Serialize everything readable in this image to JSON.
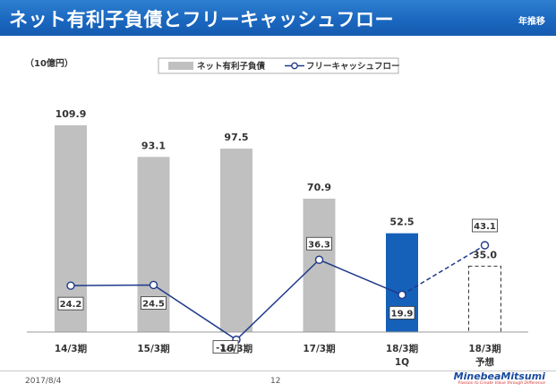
{
  "header": {
    "title": "ネット有利子負債とフリーキャッシュフロー",
    "tag": "年推移"
  },
  "chart_data": {
    "type": "bar",
    "unit_label": "（10億円）",
    "categories": [
      {
        "line1": "14/3期",
        "line2": ""
      },
      {
        "line1": "15/3期",
        "line2": ""
      },
      {
        "line1": "16/3期",
        "line2": ""
      },
      {
        "line1": "17/3期",
        "line2": ""
      },
      {
        "line1": "18/3期",
        "line2": "1Q"
      },
      {
        "line1": "18/3期",
        "line2": "予想"
      }
    ],
    "series": [
      {
        "name": "ネット有利子負債",
        "type": "bar",
        "values": [
          109.9,
          93.1,
          97.5,
          70.9,
          52.5,
          35.0
        ],
        "labels": [
          "109.9",
          "93.1",
          "97.5",
          "70.9",
          "52.5",
          "35.0"
        ],
        "styles": [
          "gray",
          "gray",
          "gray",
          "gray",
          "highlight",
          "forecast"
        ]
      },
      {
        "name": "フリーキャッシュフロー",
        "type": "line",
        "values": [
          24.2,
          24.5,
          -1.1,
          36.3,
          19.9,
          43.1
        ],
        "labels": [
          "24.2",
          "24.5",
          "-1.1",
          "36.3",
          "19.9",
          "43.1"
        ],
        "forecast_from_index": 4
      }
    ],
    "colors": {
      "bar": "#c0c0c0",
      "highlight": "#1560b8",
      "line": "#1f3a8a",
      "forecast_border": "#333333"
    }
  },
  "footer": {
    "date": "2017/8/4",
    "page": "12",
    "logo": "MinebeaMitsumi",
    "tagline": "Passion to Create Value through Difference"
  }
}
